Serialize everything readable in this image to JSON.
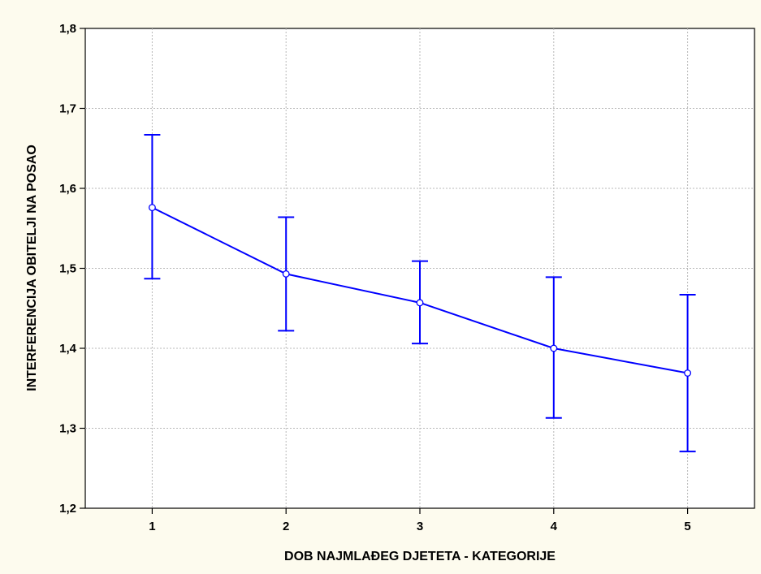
{
  "chart_data": {
    "type": "line",
    "title": "",
    "xlabel": "DOB NAJMLAĐEG DJETETA  -  KATEGORIJE",
    "ylabel": "INTERFERENCIJA OBITELJI NA POSAO",
    "categories": [
      "1",
      "2",
      "3",
      "4",
      "5"
    ],
    "series": [
      {
        "values": [
          1.576,
          1.493,
          1.457,
          1.4,
          1.369
        ],
        "error_lower": [
          1.487,
          1.422,
          1.406,
          1.313,
          1.271
        ],
        "error_upper": [
          1.667,
          1.564,
          1.509,
          1.489,
          1.467
        ],
        "color": "#0000ff"
      }
    ],
    "ylim": [
      1.2,
      1.8
    ],
    "y_ticks": [
      "1,2",
      "1,3",
      "1,4",
      "1,5",
      "1,6",
      "1,7",
      "1,8"
    ],
    "grid": true,
    "legend": "none"
  },
  "colors": {
    "background": "#fdfbee",
    "plot_background": "#ffffff",
    "series": "#0000ff"
  }
}
